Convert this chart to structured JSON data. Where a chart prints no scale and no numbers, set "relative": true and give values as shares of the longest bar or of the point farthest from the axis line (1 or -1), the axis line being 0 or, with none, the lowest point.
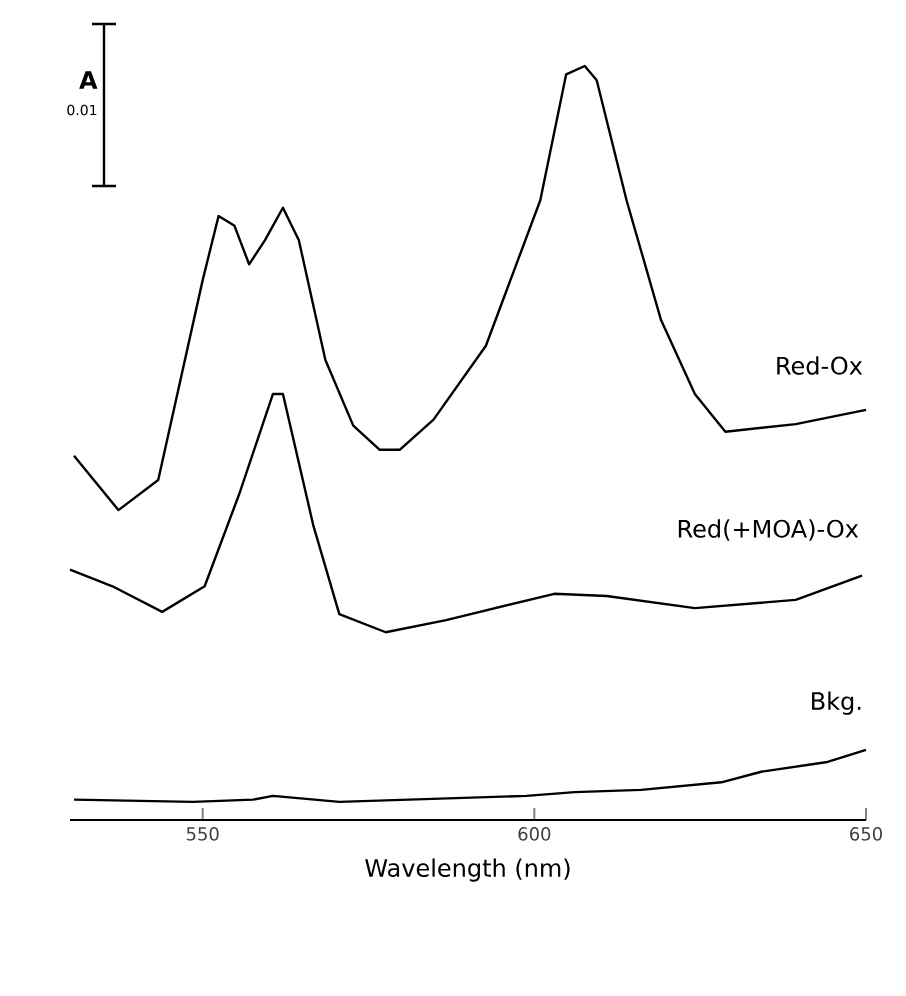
{
  "chart_data": {
    "type": "line",
    "relative": true,
    "xlabel": "Wavelength (nm)",
    "xlim": [
      530,
      650
    ],
    "xticks": [
      550,
      600,
      650
    ],
    "annotations": [
      "A",
      "0.01"
    ],
    "series": [
      {
        "name": "Red-Ox",
        "color": "#000000",
        "x": [
          530.6,
          537.3,
          543.3,
          550,
          552.4,
          554.8,
          557,
          559.4,
          562.1,
          564.5,
          568.5,
          572.7,
          576.7,
          579.7,
          584.8,
          592.7,
          600.9,
          604.8,
          607.6,
          609.4,
          613.9,
          619.1,
          624.2,
          628.8,
          639.4,
          650
        ],
        "values": [
          0.483,
          0.411,
          0.451,
          0.716,
          0.801,
          0.788,
          0.737,
          0.769,
          0.812,
          0.769,
          0.61,
          0.523,
          0.491,
          0.491,
          0.531,
          0.629,
          0.822,
          0.989,
          1.0,
          0.981,
          0.822,
          0.663,
          0.565,
          0.515,
          0.525,
          0.544
        ]
      },
      {
        "name": "Red(+MOA)-Ox",
        "color": "#000000",
        "x": [
          530,
          536.4,
          543.9,
          550.3,
          555.5,
          560.6,
          562.1,
          566.7,
          570.6,
          577.6,
          586.7,
          603,
          610.9,
          624.2,
          639.4,
          649.4
        ],
        "values": [
          0.332,
          0.31,
          0.276,
          0.31,
          0.432,
          0.565,
          0.565,
          0.39,
          0.273,
          0.249,
          0.265,
          0.3,
          0.297,
          0.281,
          0.292,
          0.324
        ]
      },
      {
        "name": "Bkg.",
        "color": "#000000",
        "x": [
          530.6,
          548.5,
          557.6,
          560.6,
          570.6,
          598.8,
          606.1,
          616.1,
          628.2,
          634.2,
          644.2,
          650
        ],
        "values": [
          0.027,
          0.024,
          0.027,
          0.032,
          0.024,
          0.032,
          0.037,
          0.04,
          0.05,
          0.064,
          0.077,
          0.093
        ]
      }
    ]
  }
}
